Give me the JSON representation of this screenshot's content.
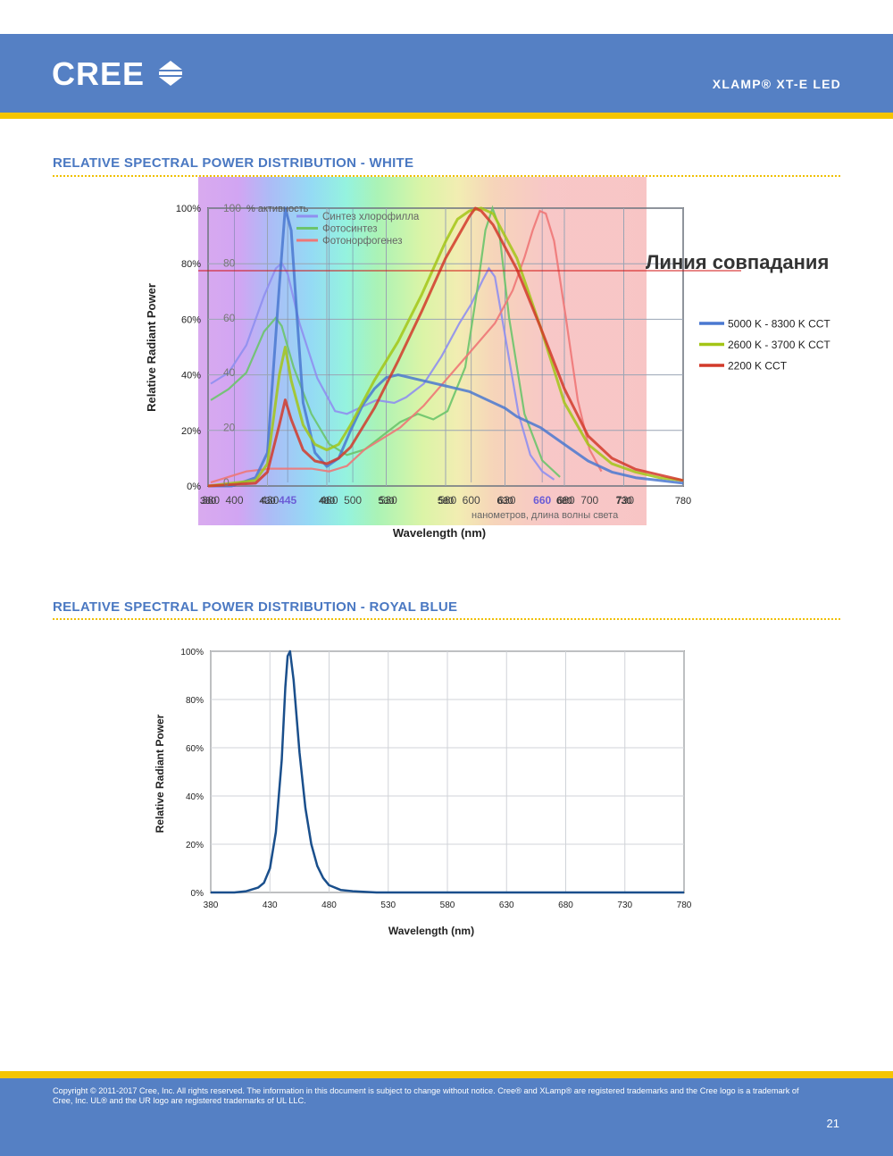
{
  "header": {
    "logo_text": "CREE",
    "product": "XLAMP® XT-E LED",
    "band_color": "#5580c4",
    "stripe_color": "#f5c500"
  },
  "white_section": {
    "title": "RELATIVE SPECTRAL POWER DISTRIBUTION - WHITE"
  },
  "royal_section": {
    "title": "RELATIVE SPECTRAL POWER DISTRIBUTION - ROYAL BLUE"
  },
  "overlay": {
    "top_label": "% активность",
    "scale_ticks": [
      "100",
      "80",
      "60",
      "40",
      "20",
      "0"
    ],
    "x_ticks": [
      "380",
      "400",
      "430",
      "445",
      "480",
      "500",
      "530",
      "580",
      "600",
      "630",
      "660",
      "680",
      "700",
      "730"
    ],
    "axis_label": "нанометров, длина волны света",
    "legend": [
      {
        "name": "Синтез хлорофилла",
        "color": "#8f8ff0"
      },
      {
        "name": "Фотосинтез",
        "color": "#6cc46c"
      },
      {
        "name": "Фотонорфогенез",
        "color": "#ee7777"
      }
    ],
    "match_line_label": "Линия совпадания",
    "match_line_color": "#d01010"
  },
  "chart_data": [
    {
      "type": "line",
      "title": "",
      "xlabel": "Wavelength (nm)",
      "ylabel": "Relative Radiant Power",
      "xlim": [
        380,
        780
      ],
      "ylim": [
        0,
        100
      ],
      "x_ticks": [
        "380",
        "430",
        "480",
        "530",
        "580",
        "630",
        "680",
        "730",
        "780"
      ],
      "y_ticks": [
        "0%",
        "20%",
        "40%",
        "60%",
        "80%",
        "100%"
      ],
      "grid": true,
      "legend_position": "right",
      "series": [
        {
          "name": "5000 K - 8300 K CCT",
          "color": "#4a78d0",
          "x": [
            380,
            400,
            420,
            430,
            440,
            445,
            450,
            455,
            460,
            470,
            480,
            490,
            500,
            510,
            520,
            530,
            540,
            560,
            580,
            600,
            620,
            630,
            640,
            660,
            680,
            700,
            720,
            740,
            760,
            780
          ],
          "y": [
            0,
            0,
            3,
            12,
            72,
            100,
            92,
            60,
            30,
            12,
            7,
            10,
            20,
            29,
            35,
            39,
            40,
            38,
            36,
            34,
            30,
            28,
            25,
            21,
            15,
            9,
            5,
            3,
            2,
            1
          ]
        },
        {
          "name": "2600 K - 3700 K CCT",
          "color": "#a3c516",
          "x": [
            380,
            420,
            430,
            440,
            445,
            450,
            460,
            470,
            480,
            490,
            500,
            520,
            540,
            560,
            580,
            590,
            600,
            610,
            620,
            640,
            660,
            680,
            700,
            720,
            740,
            760,
            780
          ],
          "y": [
            0,
            2,
            8,
            40,
            50,
            38,
            22,
            15,
            13,
            15,
            22,
            38,
            52,
            69,
            88,
            96,
            99,
            100,
            98,
            82,
            57,
            30,
            15,
            8,
            5,
            3,
            2
          ]
        },
        {
          "name": "2200 K CCT",
          "color": "#d23a2a",
          "x": [
            380,
            420,
            430,
            440,
            445,
            450,
            460,
            470,
            480,
            490,
            500,
            520,
            540,
            560,
            580,
            600,
            605,
            610,
            620,
            640,
            660,
            680,
            700,
            720,
            740,
            760,
            780
          ],
          "y": [
            0,
            1,
            5,
            22,
            31,
            24,
            13,
            9,
            8,
            10,
            14,
            28,
            45,
            63,
            82,
            97,
            100,
            99,
            94,
            78,
            57,
            35,
            18,
            10,
            6,
            4,
            2
          ]
        }
      ]
    },
    {
      "type": "line",
      "title": "",
      "xlabel": "Wavelength (nm)",
      "ylabel": "Relative Radiant Power",
      "xlim": [
        380,
        780
      ],
      "ylim": [
        0,
        100
      ],
      "x_ticks": [
        "380",
        "430",
        "480",
        "530",
        "580",
        "630",
        "680",
        "730",
        "780"
      ],
      "y_ticks": [
        "0%",
        "20%",
        "40%",
        "60%",
        "80%",
        "100%"
      ],
      "grid": true,
      "series": [
        {
          "color": "#1a4f8c",
          "x": [
            380,
            400,
            410,
            420,
            425,
            430,
            435,
            440,
            443,
            445,
            447,
            450,
            455,
            460,
            465,
            470,
            475,
            480,
            490,
            500,
            520,
            560,
            620,
            700,
            780
          ],
          "y": [
            0,
            0,
            0.5,
            2,
            4,
            10,
            25,
            55,
            85,
            98,
            100,
            88,
            58,
            35,
            20,
            11,
            6,
            3,
            1,
            0.5,
            0,
            0,
            0,
            0,
            0
          ]
        }
      ]
    }
  ],
  "footer": {
    "copyright_line1": "Copyright © 2011-2017 Cree, Inc. All rights reserved. The information in this document is subject to change without notice. Cree® and XLamp® are registered trademarks and the Cree logo is a trademark of",
    "copyright_line2": "Cree, Inc. UL® and the UR logo are registered trademarks of UL LLC.",
    "page_number": "21"
  }
}
